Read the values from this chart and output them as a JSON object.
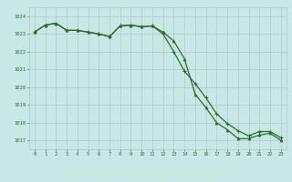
{
  "line1_x": [
    0,
    1,
    2,
    3,
    4,
    5,
    6,
    7,
    8,
    9,
    10,
    11,
    12,
    13,
    14,
    15,
    16,
    17,
    18,
    19,
    20,
    21,
    22,
    23
  ],
  "line1_y": [
    1023.1,
    1023.5,
    1023.6,
    1023.2,
    1023.2,
    1023.1,
    1023.0,
    1022.85,
    1023.45,
    1023.5,
    1023.4,
    1023.45,
    1023.1,
    1022.6,
    1021.6,
    1019.6,
    1018.85,
    1018.0,
    1017.6,
    1017.1,
    1017.1,
    1017.3,
    1017.4,
    1017.0
  ],
  "line2_x": [
    0,
    1,
    2,
    3,
    4,
    5,
    6,
    7,
    8,
    9,
    10,
    11,
    12,
    13,
    14,
    15,
    16,
    17,
    18,
    19,
    20,
    21,
    22,
    23
  ],
  "line2_y": [
    1023.1,
    1023.5,
    1023.6,
    1023.2,
    1023.2,
    1023.1,
    1023.0,
    1022.85,
    1023.45,
    1023.5,
    1023.4,
    1023.45,
    1023.0,
    1022.0,
    1020.9,
    1020.2,
    1019.4,
    1018.5,
    1017.95,
    1017.55,
    1017.25,
    1017.5,
    1017.5,
    1017.15
  ],
  "line1_color": "#2d6e2d",
  "line2_color": "#2d6e2d",
  "bg_color": "#c8e8e8",
  "grid_color": "#b0c8c8",
  "xlabel": "Graphe pression niveau de la mer (hPa)",
  "xlabel_bg": "#2d6e2d",
  "xlabel_fg": "#c8eec8",
  "ylim": [
    1016.5,
    1024.5
  ],
  "yticks": [
    1017,
    1018,
    1019,
    1020,
    1021,
    1022,
    1023,
    1024
  ],
  "xticks": [
    0,
    1,
    2,
    3,
    4,
    5,
    6,
    7,
    8,
    9,
    10,
    11,
    12,
    13,
    14,
    15,
    16,
    17,
    18,
    19,
    20,
    21,
    22,
    23
  ],
  "tick_color": "#2d6e2d"
}
